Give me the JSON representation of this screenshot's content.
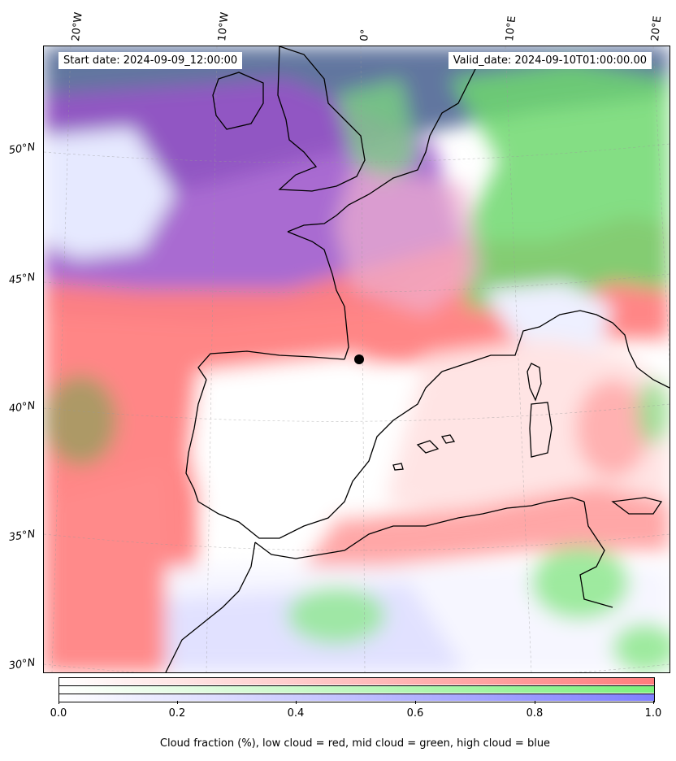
{
  "map": {
    "start_label": "Start date: 2024-09-09_12:00:00",
    "valid_label": "Valid_date: 2024-09-10T01:00:00.00",
    "lon_labels": [
      "20°W",
      "10°W",
      "0°",
      "10°E",
      "20°E"
    ],
    "lat_labels": [
      "50°N",
      "45°N",
      "40°N",
      "35°N",
      "30°N"
    ],
    "region": "Western Europe / Iberia / Western Mediterranean",
    "colors": {
      "low_cloud": "#ff7070",
      "mid_cloud": "#70ff70",
      "high_cloud": "#7070ff",
      "coast": "#000000"
    },
    "marker": "black dot near 42°N 1°W"
  },
  "colorbar": {
    "ticks": [
      "0.0",
      "0.2",
      "0.4",
      "0.6",
      "0.8",
      "1.0"
    ],
    "caption": "Cloud fraction (%), low cloud = red, mid cloud = green, high cloud = blue"
  }
}
